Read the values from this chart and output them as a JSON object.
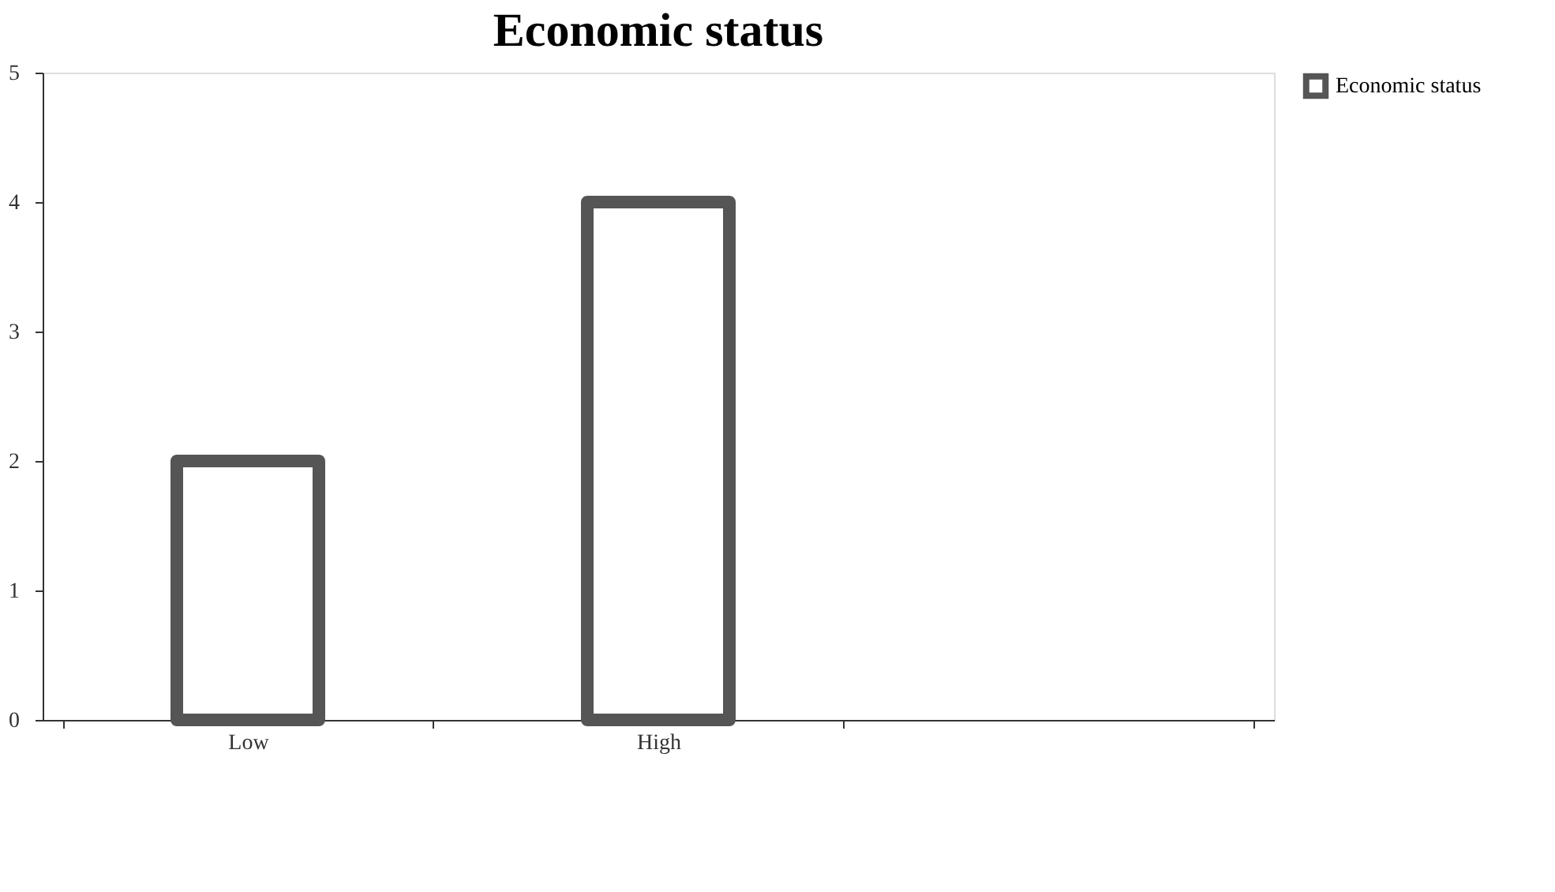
{
  "chart_data": {
    "type": "bar",
    "title": "Economic status",
    "categories": [
      "Low",
      "High",
      null
    ],
    "series": [
      {
        "name": "Economic status",
        "color": "#555555",
        "values": [
          2,
          4,
          null
        ]
      }
    ],
    "ylim": [
      0,
      5
    ],
    "yticks": [
      0,
      1,
      2,
      3,
      4,
      5
    ],
    "grid": false,
    "legend": "right"
  }
}
